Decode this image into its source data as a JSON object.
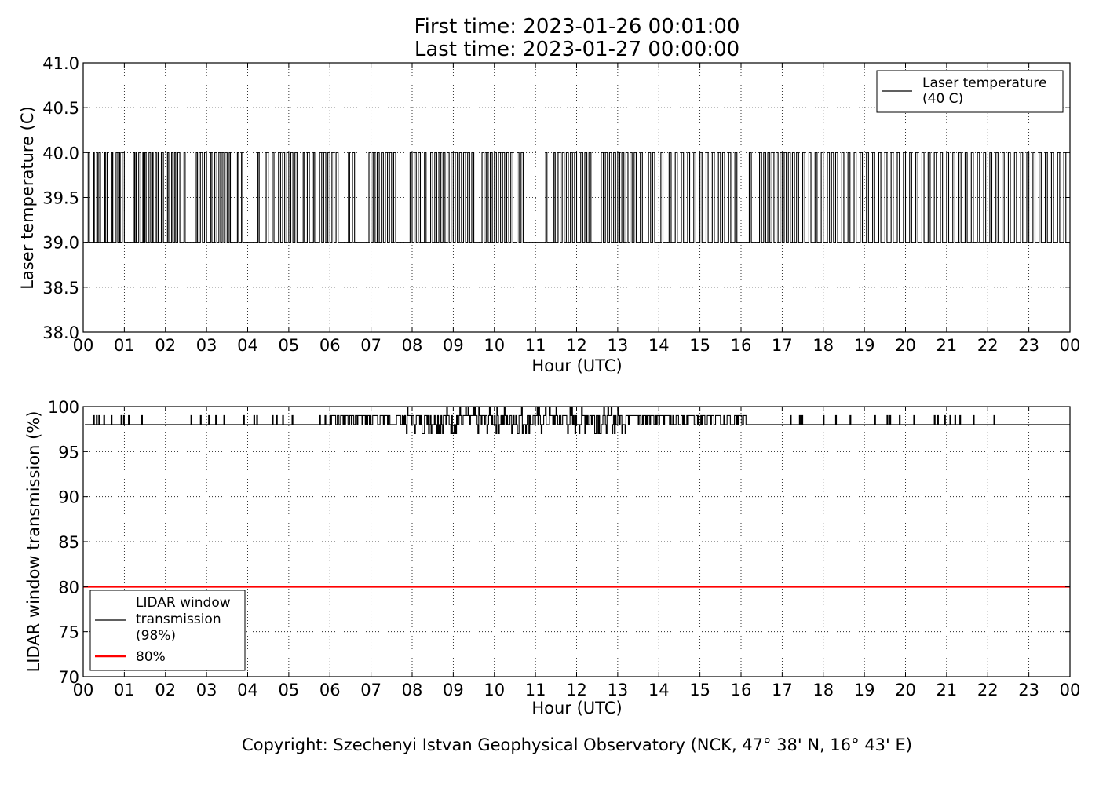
{
  "header": {
    "first_time": "First time: 2023-01-26 00:01:00",
    "last_time": "Last time: 2023-01-27 00:00:00"
  },
  "footer": {
    "copyright": "Copyright: Szechenyi Istvan Geophysical Observatory (NCK, 47° 38' N, 16° 43' E)"
  },
  "chart_data": [
    {
      "type": "line",
      "xlabel": "Hour (UTC)",
      "ylabel": "Laser temperature (C)",
      "xlim": [
        0,
        24
      ],
      "ylim": [
        38.0,
        41.0
      ],
      "x_tick_labels": [
        "00",
        "01",
        "02",
        "03",
        "04",
        "05",
        "06",
        "07",
        "08",
        "09",
        "10",
        "11",
        "12",
        "13",
        "14",
        "15",
        "16",
        "17",
        "18",
        "19",
        "20",
        "21",
        "22",
        "23",
        "00"
      ],
      "y_tick_labels": [
        "38.0",
        "38.5",
        "39.0",
        "39.5",
        "40.0",
        "40.5",
        "41.0"
      ],
      "y_ticks": [
        38.0,
        38.5,
        39.0,
        39.5,
        40.0,
        40.5,
        41.0
      ],
      "grid": true,
      "legend_position": "top-right",
      "series": [
        {
          "name": "Laser temperature\n(40 C)",
          "color": "#000000",
          "levels": [
            39.0,
            40.0
          ],
          "high_intervals_hours": [
            [
              0.12,
              0.15
            ],
            [
              0.25,
              0.27
            ],
            [
              0.33,
              0.35
            ],
            [
              0.38,
              0.42
            ],
            [
              0.52,
              0.54
            ],
            [
              0.58,
              0.6
            ],
            [
              0.7,
              0.72
            ],
            [
              0.8,
              0.84
            ],
            [
              0.88,
              0.9
            ],
            [
              0.95,
              1.0
            ],
            [
              1.22,
              1.25
            ],
            [
              1.28,
              1.3
            ],
            [
              1.35,
              1.4
            ],
            [
              1.45,
              1.47
            ],
            [
              1.5,
              1.53
            ],
            [
              1.6,
              1.64
            ],
            [
              1.68,
              1.7
            ],
            [
              1.75,
              1.78
            ],
            [
              1.82,
              1.84
            ],
            [
              1.9,
              1.95
            ],
            [
              2.05,
              2.08
            ],
            [
              2.15,
              2.18
            ],
            [
              2.22,
              2.25
            ],
            [
              2.3,
              2.35
            ],
            [
              2.45,
              2.48
            ],
            [
              2.75,
              2.78
            ],
            [
              2.85,
              2.9
            ],
            [
              2.95,
              3.0
            ],
            [
              3.1,
              3.13
            ],
            [
              3.2,
              3.25
            ],
            [
              3.3,
              3.34
            ],
            [
              3.38,
              3.42
            ],
            [
              3.45,
              3.5
            ],
            [
              3.55,
              3.58
            ],
            [
              3.75,
              3.78
            ],
            [
              3.85,
              3.88
            ],
            [
              4.25,
              4.28
            ],
            [
              4.45,
              4.5
            ],
            [
              4.6,
              4.64
            ],
            [
              4.75,
              4.8
            ],
            [
              4.85,
              4.9
            ],
            [
              4.95,
              5.0
            ],
            [
              5.05,
              5.1
            ],
            [
              5.15,
              5.2
            ],
            [
              5.35,
              5.38
            ],
            [
              5.45,
              5.5
            ],
            [
              5.6,
              5.63
            ],
            [
              5.75,
              5.8
            ],
            [
              5.85,
              5.9
            ],
            [
              5.95,
              6.0
            ],
            [
              6.05,
              6.1
            ],
            [
              6.15,
              6.2
            ],
            [
              6.45,
              6.48
            ],
            [
              6.55,
              6.6
            ],
            [
              6.95,
              7.0
            ],
            [
              7.05,
              7.1
            ],
            [
              7.15,
              7.2
            ],
            [
              7.25,
              7.3
            ],
            [
              7.35,
              7.4
            ],
            [
              7.45,
              7.5
            ],
            [
              7.55,
              7.6
            ],
            [
              7.95,
              8.0
            ],
            [
              8.05,
              8.1
            ],
            [
              8.15,
              8.2
            ],
            [
              8.3,
              8.34
            ],
            [
              8.45,
              8.5
            ],
            [
              8.55,
              8.6
            ],
            [
              8.65,
              8.7
            ],
            [
              8.75,
              8.8
            ],
            [
              8.85,
              8.9
            ],
            [
              8.95,
              9.0
            ],
            [
              9.05,
              9.1
            ],
            [
              9.15,
              9.2
            ],
            [
              9.25,
              9.3
            ],
            [
              9.35,
              9.4
            ],
            [
              9.45,
              9.5
            ],
            [
              9.7,
              9.75
            ],
            [
              9.8,
              9.85
            ],
            [
              9.9,
              9.95
            ],
            [
              10.0,
              10.05
            ],
            [
              10.1,
              10.15
            ],
            [
              10.2,
              10.25
            ],
            [
              10.3,
              10.35
            ],
            [
              10.4,
              10.45
            ],
            [
              10.55,
              10.6
            ],
            [
              10.65,
              10.7
            ],
            [
              11.25,
              11.28
            ],
            [
              11.45,
              11.48
            ],
            [
              11.55,
              11.6
            ],
            [
              11.65,
              11.7
            ],
            [
              11.75,
              11.8
            ],
            [
              11.85,
              11.9
            ],
            [
              11.95,
              12.0
            ],
            [
              12.1,
              12.15
            ],
            [
              12.2,
              12.25
            ],
            [
              12.3,
              12.35
            ],
            [
              12.6,
              12.65
            ],
            [
              12.7,
              12.75
            ],
            [
              12.8,
              12.85
            ],
            [
              12.9,
              12.95
            ],
            [
              13.0,
              13.05
            ],
            [
              13.1,
              13.15
            ],
            [
              13.2,
              13.25
            ],
            [
              13.3,
              13.35
            ],
            [
              13.4,
              13.45
            ],
            [
              13.55,
              13.6
            ],
            [
              13.75,
              13.8
            ],
            [
              13.85,
              13.9
            ],
            [
              14.05,
              14.1
            ],
            [
              14.25,
              14.3
            ],
            [
              14.4,
              14.45
            ],
            [
              14.55,
              14.6
            ],
            [
              14.7,
              14.75
            ],
            [
              14.85,
              14.9
            ],
            [
              15.0,
              15.05
            ],
            [
              15.15,
              15.2
            ],
            [
              15.3,
              15.35
            ],
            [
              15.45,
              15.5
            ],
            [
              15.55,
              15.6
            ],
            [
              15.7,
              15.75
            ],
            [
              15.85,
              15.9
            ],
            [
              16.2,
              16.25
            ],
            [
              16.45,
              16.5
            ],
            [
              16.55,
              16.6
            ],
            [
              16.65,
              16.7
            ],
            [
              16.75,
              16.8
            ],
            [
              16.85,
              16.9
            ],
            [
              16.95,
              17.0
            ],
            [
              17.05,
              17.1
            ],
            [
              17.15,
              17.2
            ],
            [
              17.25,
              17.3
            ],
            [
              17.35,
              17.4
            ],
            [
              17.5,
              17.55
            ],
            [
              17.65,
              17.7
            ],
            [
              17.8,
              17.85
            ],
            [
              17.95,
              18.0
            ],
            [
              18.1,
              18.15
            ],
            [
              18.2,
              18.25
            ],
            [
              18.3,
              18.35
            ],
            [
              18.45,
              18.5
            ],
            [
              18.6,
              18.65
            ],
            [
              18.75,
              18.8
            ],
            [
              18.9,
              18.95
            ],
            [
              19.05,
              19.1
            ],
            [
              19.2,
              19.25
            ],
            [
              19.35,
              19.4
            ],
            [
              19.5,
              19.55
            ],
            [
              19.65,
              19.7
            ],
            [
              19.8,
              19.85
            ],
            [
              19.95,
              20.0
            ],
            [
              20.1,
              20.15
            ],
            [
              20.25,
              20.3
            ],
            [
              20.4,
              20.45
            ],
            [
              20.55,
              20.6
            ],
            [
              20.7,
              20.75
            ],
            [
              20.85,
              20.9
            ],
            [
              21.0,
              21.05
            ],
            [
              21.15,
              21.2
            ],
            [
              21.3,
              21.35
            ],
            [
              21.45,
              21.5
            ],
            [
              21.6,
              21.65
            ],
            [
              21.75,
              21.8
            ],
            [
              21.9,
              21.95
            ],
            [
              22.05,
              22.1
            ],
            [
              22.2,
              22.25
            ],
            [
              22.35,
              22.4
            ],
            [
              22.5,
              22.55
            ],
            [
              22.65,
              22.7
            ],
            [
              22.8,
              22.85
            ],
            [
              22.95,
              23.0
            ],
            [
              23.1,
              23.15
            ],
            [
              23.25,
              23.3
            ],
            [
              23.4,
              23.45
            ],
            [
              23.55,
              23.6
            ],
            [
              23.7,
              23.75
            ],
            [
              23.85,
              23.9
            ]
          ]
        }
      ]
    },
    {
      "type": "line",
      "xlabel": "Hour (UTC)",
      "ylabel": "LIDAR window transmission (%)",
      "xlim": [
        0,
        24
      ],
      "ylim": [
        70,
        100
      ],
      "x_tick_labels": [
        "00",
        "01",
        "02",
        "03",
        "04",
        "05",
        "06",
        "07",
        "08",
        "09",
        "10",
        "11",
        "12",
        "13",
        "14",
        "15",
        "16",
        "17",
        "18",
        "19",
        "20",
        "21",
        "22",
        "23",
        "00"
      ],
      "y_tick_labels": [
        "70",
        "75",
        "80",
        "85",
        "90",
        "95",
        "100"
      ],
      "y_ticks": [
        70,
        75,
        80,
        85,
        90,
        95,
        100
      ],
      "grid": true,
      "legend_position": "bottom-left",
      "series": [
        {
          "name": "LIDAR window\ntransmission\n(98%)",
          "color": "#000000",
          "baseline": 98,
          "upward_spikes_hours": [
            0.25,
            0.32,
            0.38,
            0.5,
            0.68,
            0.92,
            0.98,
            1.1,
            1.42,
            2.62,
            2.85,
            3.05,
            3.22,
            3.42,
            3.9,
            4.15,
            4.22,
            4.6,
            4.7,
            4.85,
            5.08,
            5.75,
            5.88
          ],
          "noisy_segments": [
            {
              "x_range": [
                6.0,
                7.8
              ],
              "y_range": [
                98,
                99
              ]
            },
            {
              "x_range": [
                7.8,
                13.2
              ],
              "y_range": [
                97,
                100
              ]
            },
            {
              "x_range": [
                13.2,
                16.15
              ],
              "y_range": [
                98,
                99
              ]
            }
          ],
          "upward_spikes_hours_late": [
            17.2,
            17.42,
            17.48,
            18.0,
            18.3,
            18.65,
            19.25,
            19.55,
            19.62,
            19.85,
            20.2,
            20.7,
            20.78,
            20.95,
            21.08,
            21.2,
            21.32,
            21.65,
            22.15
          ]
        },
        {
          "name": "80%",
          "color": "#ff0000",
          "values_constant": 80
        }
      ]
    }
  ]
}
